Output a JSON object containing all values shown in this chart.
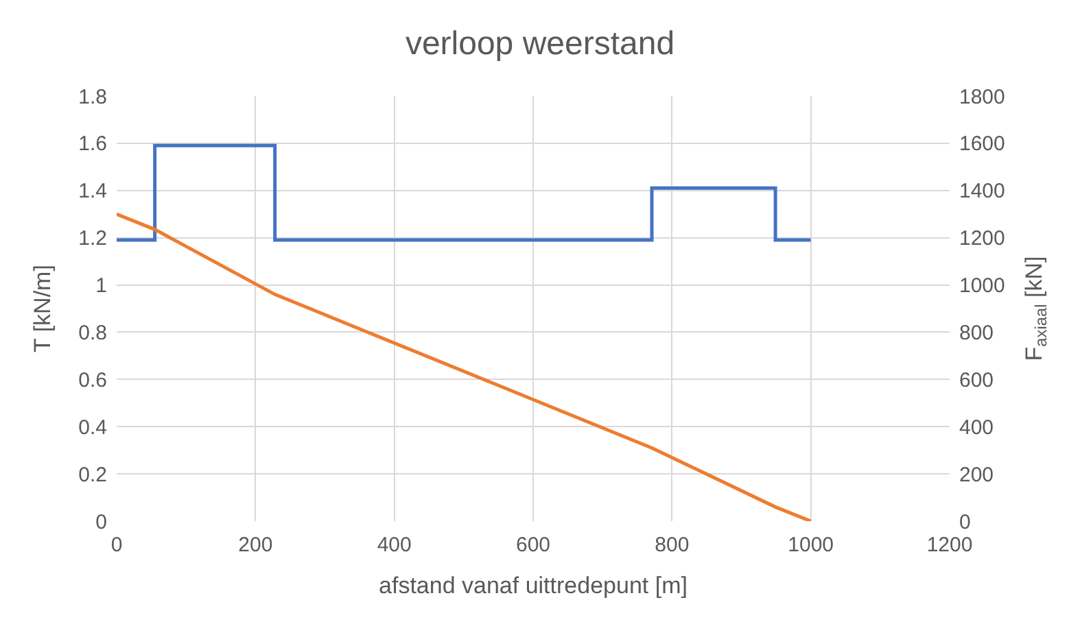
{
  "chart_data": {
    "type": "line",
    "title": "verloop weerstand",
    "xlabel": "afstand vanaf uittredepunt [m]",
    "ylabel": "T [kN/m]",
    "y2label": "F$_{axiaal}$ [kN]",
    "series": [
      {
        "type": "step",
        "color": "#4472c4",
        "x": [
          0,
          55,
          228,
          771,
          949,
          1000
        ],
        "values": [
          1.19,
          1.59,
          1.19,
          1.41,
          1.19,
          1.19
        ]
      },
      {
        "color": "#ed7d31",
        "axis": "y2",
        "x": [
          0,
          55,
          228,
          771,
          949,
          1000
        ],
        "values": [
          1300,
          1235,
          960,
          310,
          60,
          0
        ]
      }
    ],
    "xlim": [
      0,
      1200
    ],
    "xticks": [
      0,
      200,
      400,
      600,
      800,
      1000,
      1200
    ],
    "ylim": [
      0,
      1.8
    ],
    "yticks": [
      0,
      0.2,
      0.4,
      0.6,
      0.8,
      1,
      1.2,
      1.4,
      1.6,
      1.8
    ],
    "y2lim": [
      0,
      1800
    ],
    "y2ticks": [
      0,
      200,
      400,
      600,
      800,
      1000,
      1200,
      1400,
      1600,
      1800
    ],
    "grid": true
  }
}
